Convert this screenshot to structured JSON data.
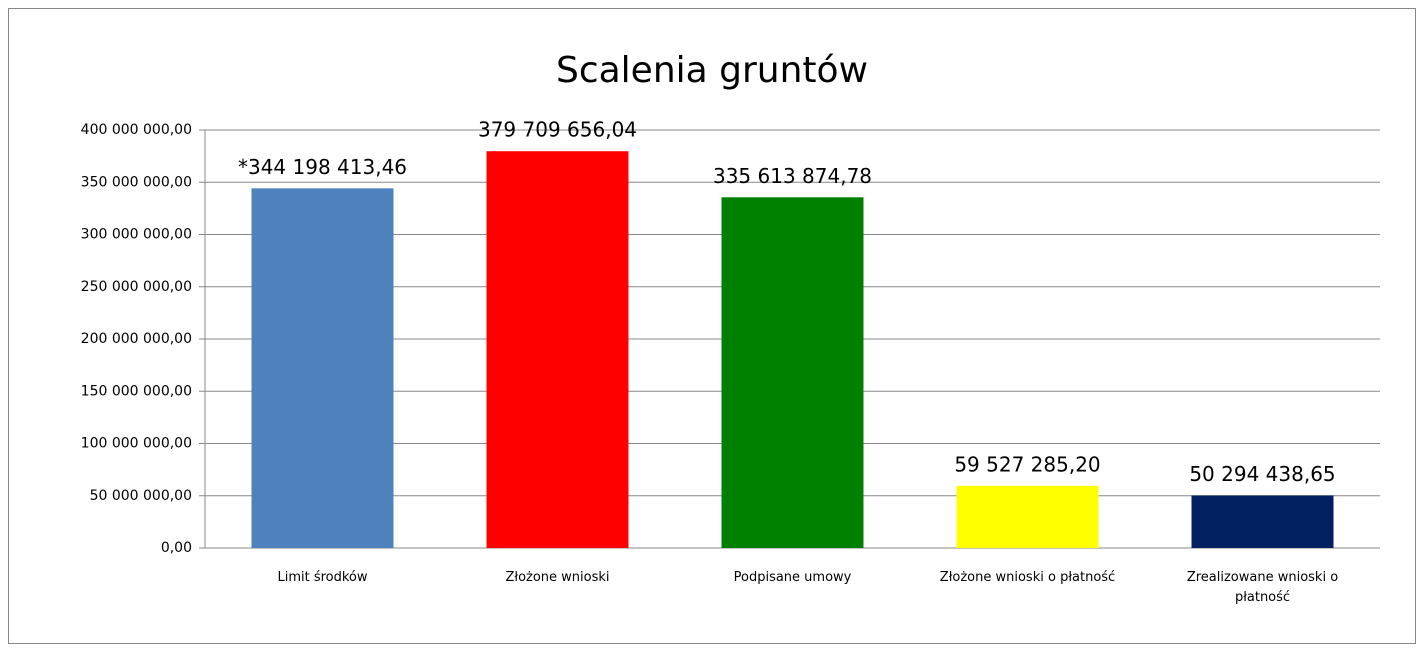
{
  "chart_data": {
    "type": "bar",
    "title": "Scalenia gruntów",
    "categories": [
      "Limit środków",
      "Złożone wnioski",
      "Podpisane umowy",
      "Złożone wnioski o płatność",
      "Zrealizowane wnioski o płatność"
    ],
    "values": [
      344198413.46,
      379709656.04,
      335613874.78,
      59527285.2,
      50294438.65
    ],
    "value_labels": [
      "*344 198 413,46",
      "379 709 656,04",
      "335 613 874,78",
      "59 527 285,20",
      "50 294 438,65"
    ],
    "colors": [
      "#4f81bd",
      "#ff0000",
      "#008000",
      "#ffff00",
      "#002060"
    ],
    "ylim": [
      0,
      400000000
    ],
    "yticks": [
      {
        "value": 0,
        "label": "0,00"
      },
      {
        "value": 50000000,
        "label": "50 000 000,00"
      },
      {
        "value": 100000000,
        "label": "100 000 000,00"
      },
      {
        "value": 150000000,
        "label": "150 000 000,00"
      },
      {
        "value": 200000000,
        "label": "200 000 000,00"
      },
      {
        "value": 250000000,
        "label": "250 000 000,00"
      },
      {
        "value": 300000000,
        "label": "300 000 000,00"
      },
      {
        "value": 350000000,
        "label": "350 000 000,00"
      },
      {
        "value": 400000000,
        "label": "400 000 000,00"
      }
    ],
    "grid": true
  }
}
